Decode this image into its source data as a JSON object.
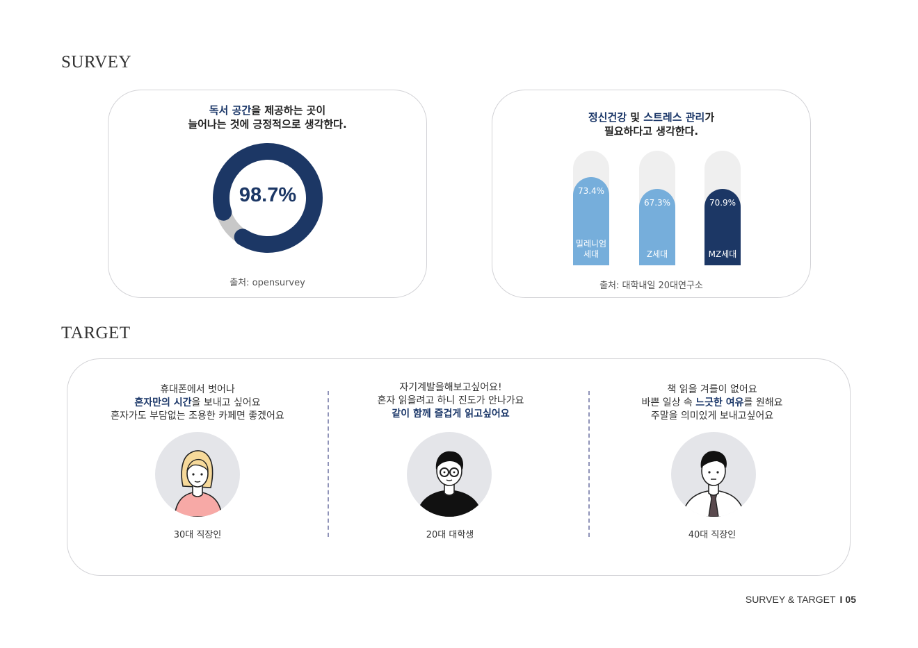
{
  "sections": {
    "survey": "SURVEY",
    "target": "TARGET"
  },
  "survey_left": {
    "heading_line1_highlight": "독서 공간",
    "heading_line1_rest": "을 제공하는 곳이",
    "heading_line2": "늘어나는 것에 긍정적으로 생각한다.",
    "value_label": "98.7%",
    "value": 98.7,
    "source": "출처: opensurvey"
  },
  "survey_right": {
    "heading_part1_highlight": "정신건강",
    "heading_part2": " 및 ",
    "heading_part3_highlight": "스트레스 관리",
    "heading_part4": "가",
    "heading_line2": "필요하다고 생각한다.",
    "source": "출처: 대학내일 20대연구소"
  },
  "chart_data": {
    "type": "bar",
    "categories": [
      "밀레니엄\n세대",
      "Z세대",
      "MZ세대"
    ],
    "values": [
      73.4,
      67.3,
      70.9
    ],
    "value_labels": [
      "73.4%",
      "67.3%",
      "70.9%"
    ],
    "colors": [
      "#76aedb",
      "#76aedb",
      "#1c3765"
    ],
    "ylim": [
      0,
      100
    ],
    "title": "정신건강 및 스트레스 관리가 필요하다고 생각한다."
  },
  "target": {
    "personas": [
      {
        "line1": "휴대폰에서 벗어나",
        "line2_highlight": "혼자만의 시간",
        "line2_rest": "을 보내고 싶어요",
        "line3": "혼자가도 부담없는 조용한 카페면 좋겠어요",
        "label": "30대 직장인"
      },
      {
        "line1": "자기계발을해보고싶어요!",
        "line2": "혼자 읽을려고 하니 진도가 안나가요",
        "line3_highlight": "같이 함께 즐겁게 읽고싶어요",
        "label": "20대 대학생"
      },
      {
        "line1": "책 읽을 겨를이 없어요",
        "line2_pre": "바쁜 일상 속 ",
        "line2_highlight": "느긋한 여유",
        "line2_rest": "를 원해요",
        "line3": "주말을 의미있게 보내고싶어요",
        "label": "40대 직장인"
      }
    ]
  },
  "footer": {
    "text": "SURVEY & TARGET",
    "separator": "I",
    "page": "05"
  },
  "colors": {
    "navy": "#1c3765",
    "light_blue": "#76aedb",
    "gray": "#c8c8c8"
  }
}
